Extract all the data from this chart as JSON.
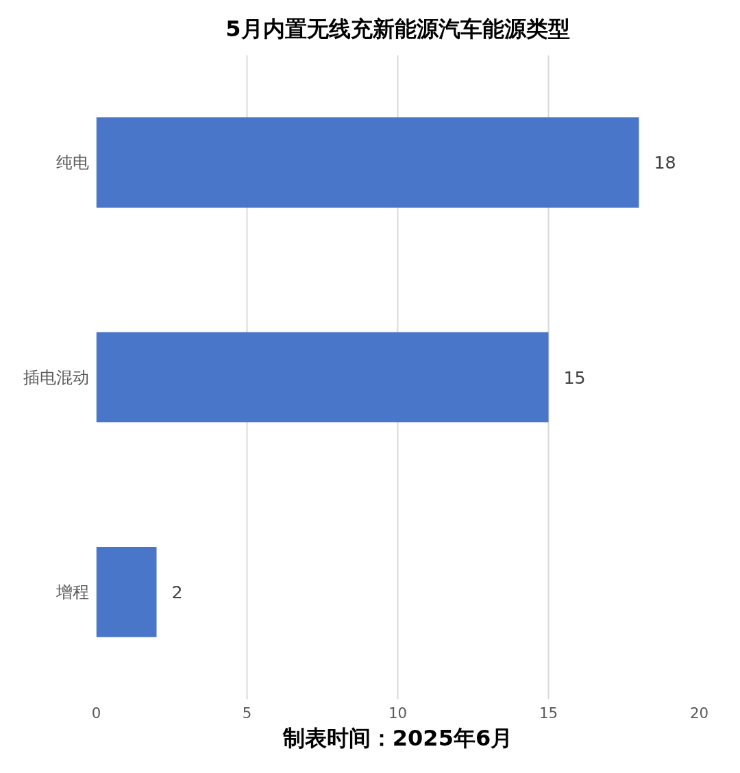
{
  "chart_data": {
    "type": "bar",
    "orientation": "horizontal",
    "title": "5月内置无线充新能源汽车能源类型",
    "categories": [
      "纯电",
      "插电混动",
      "增程"
    ],
    "values": [
      18,
      15,
      2
    ],
    "color": "#4a76c9",
    "xlim": [
      0,
      20
    ],
    "xticks": [
      0,
      5,
      10,
      15,
      20
    ],
    "grid": "x",
    "data_labels": true,
    "annotations": [
      "制表时间：2025年6月"
    ]
  }
}
